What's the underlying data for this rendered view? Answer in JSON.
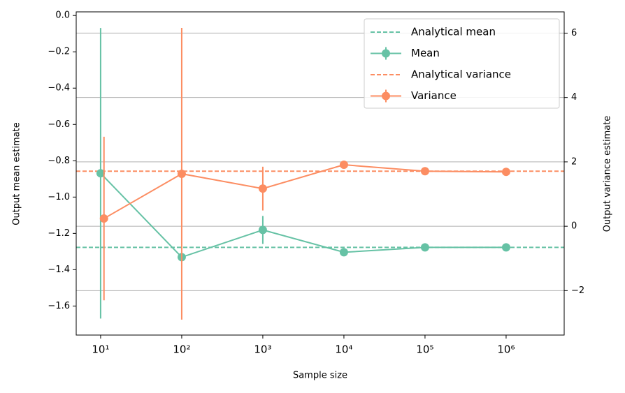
{
  "chart_data": {
    "type": "errorbar",
    "x_label": "Sample size",
    "y_label": "Output mean estimate",
    "y2_label": "Output variance estimate",
    "xscale": "log",
    "xlim": [
      5,
      5200000
    ],
    "xticks": [
      {
        "value": 10,
        "label": "10¹"
      },
      {
        "value": 100,
        "label": "10²"
      },
      {
        "value": 1000,
        "label": "10³"
      },
      {
        "value": 10000,
        "label": "10⁴"
      },
      {
        "value": 100000,
        "label": "10⁵"
      },
      {
        "value": 1000000,
        "label": "10⁶"
      }
    ],
    "ylim": [
      -1.76,
      0.02
    ],
    "yticks": [
      {
        "value": -1.6,
        "label": "−1.6"
      },
      {
        "value": -1.4,
        "label": "−1.4"
      },
      {
        "value": -1.2,
        "label": "−1.2"
      },
      {
        "value": -1.0,
        "label": "−1.0"
      },
      {
        "value": -0.8,
        "label": "−0.8"
      },
      {
        "value": -0.6,
        "label": "−0.6"
      },
      {
        "value": -0.4,
        "label": "−0.4"
      },
      {
        "value": -0.2,
        "label": "−0.2"
      },
      {
        "value": 0,
        "label": "0.0"
      }
    ],
    "y2lim": [
      -3.38,
      6.66
    ],
    "y2ticks": [
      {
        "value": -2,
        "label": "−2"
      },
      0,
      2,
      4,
      6
    ],
    "grid": "y2",
    "legend": "upper right",
    "series": [
      {
        "name": "Analytical mean",
        "color": "#66c2a5",
        "style": "dashed",
        "value": -1.277
      },
      {
        "name": "Mean",
        "color": "#66c2a5",
        "x": [
          10,
          100,
          1000,
          10000,
          100000,
          1000000
        ],
        "values": [
          -0.869,
          -1.331,
          -1.181,
          -1.304,
          -1.277,
          -1.277
        ],
        "errors": [
          0.8,
          0.01,
          0.077,
          0.01,
          0.005,
          0.003
        ]
      },
      {
        "name": "Analytical variance",
        "color": "#fc8d62",
        "style": "dashed",
        "value": 1.71,
        "axis": "y2"
      },
      {
        "name": "Variance",
        "color": "#fc8d62",
        "x": [
          11,
          100,
          1000,
          10000,
          100000,
          1000000
        ],
        "values": [
          0.24,
          1.63,
          1.17,
          1.91,
          1.71,
          1.69
        ],
        "errors": [
          2.54,
          4.53,
          0.68,
          0.03,
          0.02,
          0.01
        ],
        "axis": "y2"
      }
    ]
  }
}
